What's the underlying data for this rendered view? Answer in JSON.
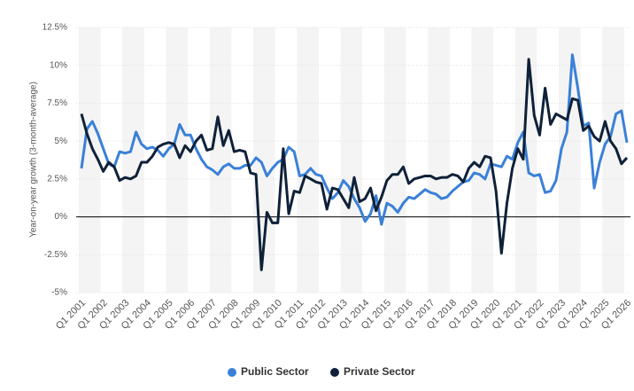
{
  "chart_data": {
    "type": "line",
    "y_label": "Year-on-year growth (3-month-average)",
    "categories": [
      "Q1 2001",
      null,
      null,
      null,
      "Q1 2002",
      null,
      null,
      null,
      "Q1 2003",
      null,
      null,
      null,
      "Q1 2004",
      null,
      null,
      null,
      "Q1 2005",
      null,
      null,
      null,
      "Q1 2006",
      null,
      null,
      null,
      "Q1 2007",
      null,
      null,
      null,
      "Q1 2008",
      null,
      null,
      null,
      "Q1 2009",
      null,
      null,
      null,
      "Q1 2010",
      null,
      null,
      null,
      "Q1 2011",
      null,
      null,
      null,
      "Q1 2012",
      null,
      null,
      null,
      "Q1 2013",
      null,
      null,
      null,
      "Q1 2014",
      null,
      null,
      null,
      "Q1 2015",
      null,
      null,
      null,
      "Q1 2016",
      null,
      null,
      null,
      "Q1 2017",
      null,
      null,
      null,
      "Q1 2018",
      null,
      null,
      null,
      "Q1 2019",
      null,
      null,
      null,
      "Q1 2020",
      null,
      null,
      null,
      "Q1 2021",
      null,
      null,
      null,
      "Q1 2022",
      null,
      null,
      null,
      "Q1 2023",
      null,
      null,
      null,
      "Q1 2024",
      null,
      null,
      null,
      "Q1 2025",
      null,
      null,
      null,
      "Q1 2026"
    ],
    "series": [
      {
        "name": "Public Sector",
        "color": "#3a80d8",
        "values": [
          3.2,
          5.8,
          6.3,
          5.5,
          4.5,
          3.5,
          3.3,
          4.3,
          4.2,
          4.3,
          5.6,
          4.8,
          4.5,
          4.6,
          4.4,
          4.0,
          4.5,
          4.8,
          6.1,
          5.4,
          5.4,
          4.5,
          3.8,
          3.3,
          3.1,
          2.8,
          3.3,
          3.5,
          3.2,
          3.2,
          3.4,
          3.4,
          3.9,
          3.6,
          2.7,
          3.2,
          3.6,
          3.8,
          4.6,
          4.3,
          2.7,
          2.8,
          3.2,
          2.8,
          2.7,
          1.9,
          1.2,
          1.6,
          2.4,
          2.0,
          1.2,
          0.6,
          -0.3,
          0.2,
          1.4,
          -0.5,
          0.9,
          0.7,
          0.3,
          0.9,
          1.3,
          1.2,
          1.5,
          1.8,
          1.6,
          1.5,
          1.2,
          1.3,
          1.7,
          2.0,
          2.3,
          2.4,
          2.9,
          2.8,
          2.5,
          3.5,
          3.4,
          3.3,
          4.0,
          3.8,
          4.9,
          5.6,
          2.9,
          2.7,
          2.8,
          1.6,
          1.7,
          2.4,
          4.5,
          5.6,
          10.7,
          8.5,
          6.0,
          6.2,
          1.9,
          3.6,
          4.8,
          5.3,
          6.8,
          7.0,
          4.9
        ]
      },
      {
        "name": "Private Sector",
        "color": "#0f2138",
        "values": [
          6.8,
          5.5,
          4.5,
          3.8,
          3.0,
          3.6,
          3.3,
          2.4,
          2.6,
          2.5,
          2.7,
          3.6,
          3.6,
          4.0,
          4.6,
          4.8,
          4.9,
          4.8,
          3.9,
          4.7,
          4.3,
          5.0,
          5.4,
          4.4,
          4.5,
          6.6,
          4.7,
          5.7,
          4.3,
          4.4,
          4.3,
          2.9,
          2.8,
          -3.5,
          0.3,
          -0.4,
          -0.4,
          4.5,
          0.2,
          1.7,
          1.6,
          2.7,
          2.5,
          2.3,
          2.2,
          0.5,
          1.9,
          1.8,
          1.2,
          0.6,
          2.6,
          1.0,
          1.2,
          1.9,
          0.4,
          1.3,
          2.4,
          2.8,
          2.8,
          3.3,
          2.2,
          2.5,
          2.6,
          2.7,
          2.7,
          2.5,
          2.6,
          2.6,
          2.8,
          2.7,
          2.3,
          3.2,
          3.6,
          3.3,
          4.0,
          3.9,
          1.7,
          -2.4,
          0.9,
          3.2,
          4.5,
          3.8,
          10.4,
          6.7,
          5.4,
          8.5,
          6.1,
          6.8,
          6.6,
          6.4,
          7.8,
          7.7,
          5.7,
          6.0,
          5.3,
          5.0,
          6.3,
          5.0,
          4.5,
          3.5,
          3.9
        ]
      }
    ],
    "ylim": [
      -5,
      12.5
    ],
    "yticks": [
      {
        "value": -5,
        "label": "-5%"
      },
      {
        "value": -2.5,
        "label": "-2.5%"
      },
      {
        "value": 0,
        "label": "0%"
      },
      {
        "value": 2.5,
        "label": "2.5%"
      },
      {
        "value": 5,
        "label": "5%"
      },
      {
        "value": 7.5,
        "label": "7.5%"
      },
      {
        "value": 10,
        "label": "10%"
      },
      {
        "value": 12.5,
        "label": "12.5%"
      }
    ],
    "grid": true,
    "legend": "bottom"
  }
}
